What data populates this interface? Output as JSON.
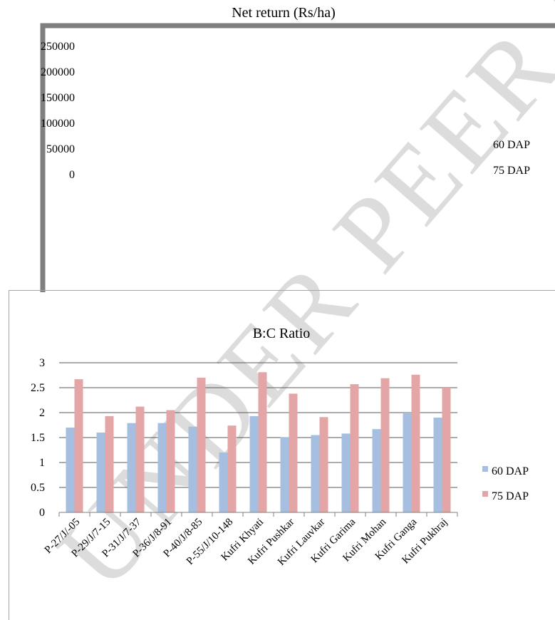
{
  "watermark": {
    "text": "UNDER PEER REVIEW",
    "color": "#dcdcdc"
  },
  "colors": {
    "series_60": "#a6bfe0",
    "series_75": "#e3a5a5",
    "axis": "#7f7f7f",
    "grid": "#595959",
    "frame": "#a6a6a6",
    "dark_frame": "#7f7f7f"
  },
  "chart_data": [
    {
      "type": "bar",
      "title": "Net return (Rs/ha)",
      "categories": [],
      "series": [
        {
          "name": "60 DAP",
          "values": []
        },
        {
          "name": "75 DAP",
          "values": []
        }
      ],
      "yticks": [
        "250000",
        "200000",
        "150000",
        "100000",
        "50000",
        "0"
      ],
      "ylim": [
        0,
        250000
      ],
      "legend": "right",
      "grid": false
    },
    {
      "type": "bar",
      "title": "B:C Ratio",
      "categories": [
        "P-27/J/-05",
        "P-29/J/7-15",
        "P-31/J/7-37",
        "P-36/J/8-91",
        "P-40/J/8-85",
        "P-55/J/10-148",
        "Kufri Khyati",
        "Kufri Pushkar",
        "Kufri Lauvkar",
        "Kufri Garima",
        "Kufri Mohan",
        "Kufri Ganga",
        "Kufri Pukhraj"
      ],
      "series": [
        {
          "name": "60 DAP",
          "values": [
            1.7,
            1.6,
            1.79,
            1.79,
            1.72,
            1.2,
            1.93,
            1.51,
            1.55,
            1.58,
            1.67,
            2.0,
            1.9
          ]
        },
        {
          "name": "75 DAP",
          "values": [
            2.67,
            1.93,
            2.12,
            2.05,
            2.7,
            1.74,
            2.81,
            2.38,
            1.91,
            2.57,
            2.69,
            2.76,
            2.5
          ]
        }
      ],
      "yticks": [
        "3",
        "2.5",
        "2",
        "1.5",
        "1",
        "0.5",
        "0"
      ],
      "ylim": [
        0,
        3
      ],
      "legend": "right",
      "grid": true
    }
  ]
}
